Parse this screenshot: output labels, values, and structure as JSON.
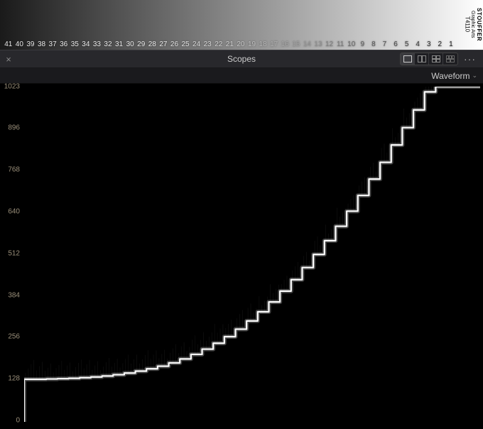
{
  "strip": {
    "labels": [
      "41",
      "40",
      "39",
      "38",
      "37",
      "36",
      "35",
      "34",
      "33",
      "32",
      "31",
      "30",
      "29",
      "28",
      "27",
      "26",
      "25",
      "24",
      "23",
      "22",
      "21",
      "20",
      "19",
      "18",
      "17",
      "16",
      "15",
      "14",
      "13",
      "12",
      "11",
      "10",
      "9",
      "8",
      "7",
      "6",
      "5",
      "4",
      "3",
      "2",
      "1"
    ],
    "brand1": "STOUFFER",
    "brand2": "Graphic Arts",
    "brand3": "T4110",
    "label_colors": [
      "#e8e8e8",
      "#e8e8e8",
      "#e8e8e8",
      "#e8e8e8",
      "#e8e8e8",
      "#e8e8e8",
      "#e8e8e8",
      "#e8e8e8",
      "#e8e8e8",
      "#e8e8e8",
      "#e8e8e8",
      "#e8e8e8",
      "#e8e8e8",
      "#e8e8e8",
      "#e8e8e8",
      "#e0e0e0",
      "#e0e0e0",
      "#d8d8d8",
      "#d8d8d8",
      "#d0d0d0",
      "#d0d0d0",
      "#c8c8c8",
      "#c0c0c0",
      "#b8b8b8",
      "#b0b0b0",
      "#a8a8a8",
      "#a0a0a0",
      "#989898",
      "#909090",
      "#808080",
      "#787878",
      "#686868",
      "#606060",
      "#585858",
      "#505050",
      "#484848",
      "#404040",
      "#383838",
      "#303030",
      "#282828",
      "#202020"
    ]
  },
  "header": {
    "title": "Scopes",
    "close": "×",
    "more": "···",
    "layout_active": 0
  },
  "subheader": {
    "scope_type": "Waveform"
  },
  "waveform": {
    "ymin": 0,
    "ymax": 1023,
    "yticks": [
      0,
      128,
      256,
      384,
      512,
      640,
      768,
      896,
      1023
    ],
    "grid_color": "#2e2a1f",
    "label_color": "#9a8f7a",
    "trace_color": "#ffffff",
    "trace_glow": "#b8b8b8",
    "background": "#000000",
    "step_count": 41,
    "step_values": [
      130,
      130,
      131,
      132,
      133,
      135,
      137,
      140,
      144,
      149,
      155,
      162,
      170,
      180,
      192,
      206,
      222,
      240,
      260,
      283,
      308,
      336,
      366,
      399,
      434,
      471,
      511,
      553,
      597,
      643,
      691,
      741,
      792,
      845,
      898,
      952,
      1007,
      1023,
      1023,
      1023,
      1023
    ],
    "noise_amp": 6
  }
}
